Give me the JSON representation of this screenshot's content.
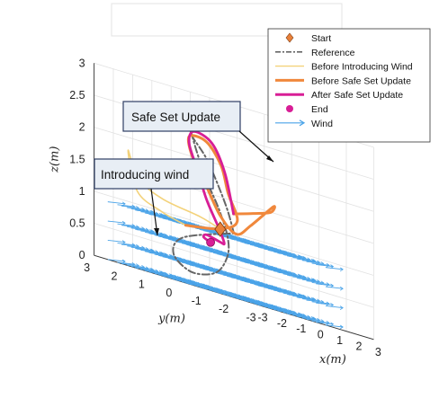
{
  "chart_data": {
    "type": "line",
    "projection": "3d",
    "xlabel": "x(m)",
    "ylabel": "y(m)",
    "zlabel": "z(m)",
    "xlim": [
      -3,
      3
    ],
    "ylim": [
      -3,
      3
    ],
    "zlim": [
      0,
      3
    ],
    "x_ticks": [
      "-3",
      "-2",
      "-1",
      "0",
      "1",
      "2",
      "3"
    ],
    "y_ticks": [
      "3",
      "2",
      "1",
      "0",
      "-1",
      "-2",
      "-3"
    ],
    "z_ticks": [
      "0",
      "0.5",
      "1",
      "1.5",
      "2",
      "2.5",
      "3"
    ],
    "grid": true,
    "legend_position": "top-right",
    "legend": [
      {
        "label": "Start",
        "color": "#e8803a",
        "marker": "diamond"
      },
      {
        "label": "Reference",
        "color": "#666666",
        "style": "dash-dot"
      },
      {
        "label": "Before Introducing Wind",
        "color": "#f3d27a",
        "style": "solid"
      },
      {
        "label": "Before Safe Set Update",
        "color": "#f0883c",
        "style": "solid"
      },
      {
        "label": "After Safe Set Update",
        "color": "#d81e96",
        "style": "solid"
      },
      {
        "label": "End",
        "color": "#d81e96",
        "marker": "circle"
      },
      {
        "label": "Wind",
        "color": "#4aa3e8",
        "marker": "arrow"
      }
    ],
    "annotations": [
      {
        "text": "Safe Set Update"
      },
      {
        "text": "Introducing wind"
      }
    ],
    "start_point": {
      "x": 0.0,
      "y": 0.5,
      "z": 1.0
    },
    "end_point": {
      "x": -0.5,
      "y": 0.5,
      "z": 0.75
    },
    "series": [
      {
        "name": "Reference",
        "points": [
          [
            0.0,
            0.0,
            1.0
          ],
          [
            1.0,
            1.0,
            1.4
          ],
          [
            1.2,
            1.8,
            2.0
          ],
          [
            1.0,
            2.2,
            2.3
          ],
          [
            0.6,
            2.0,
            2.4
          ],
          [
            0.2,
            1.5,
            2.1
          ],
          [
            0.0,
            1.0,
            1.7
          ],
          [
            -0.2,
            0.4,
            1.3
          ],
          [
            -0.6,
            -0.2,
            0.9
          ],
          [
            -1.2,
            -0.6,
            0.6
          ],
          [
            -1.8,
            -0.6,
            0.3
          ],
          [
            -2.2,
            0.0,
            0.2
          ],
          [
            -2.0,
            0.8,
            0.4
          ],
          [
            -1.2,
            1.0,
            0.7
          ],
          [
            0.0,
            0.0,
            1.0
          ]
        ]
      },
      {
        "name": "Before Introducing Wind",
        "points": [
          [
            0.0,
            0.5,
            1.0
          ],
          [
            -0.6,
            0.8,
            1.1
          ],
          [
            -1.4,
            1.6,
            1.2
          ],
          [
            -1.8,
            2.2,
            1.4
          ],
          [
            -1.8,
            2.6,
            1.8
          ],
          [
            -1.6,
            2.4,
            1.2
          ],
          [
            -1.2,
            1.8,
            1.0
          ],
          [
            -0.8,
            1.2,
            0.9
          ]
        ]
      },
      {
        "name": "Before Safe Set Update",
        "points": [
          [
            -0.8,
            1.2,
            0.9
          ],
          [
            -0.2,
            0.4,
            1.0
          ],
          [
            0.6,
            0.3,
            1.2
          ],
          [
            1.4,
            1.2,
            1.6
          ],
          [
            1.6,
            1.6,
            2.0
          ],
          [
            1.4,
            2.0,
            2.3
          ],
          [
            0.8,
            2.2,
            2.3
          ],
          [
            0.4,
            1.8,
            2.0
          ],
          [
            0.0,
            1.0,
            1.6
          ],
          [
            -0.4,
            0.2,
            1.2
          ],
          [
            -1.0,
            -0.8,
            1.0
          ],
          [
            -1.4,
            -1.6,
            1.2
          ],
          [
            -0.8,
            -2.0,
            1.6
          ],
          [
            0.2,
            -1.2,
            1.5
          ],
          [
            1.0,
            0.0,
            1.4
          ],
          [
            1.4,
            1.0,
            1.3
          ]
        ]
      },
      {
        "name": "After Safe Set Update",
        "points": [
          [
            1.4,
            1.0,
            1.3
          ],
          [
            1.8,
            1.6,
            1.9
          ],
          [
            1.7,
            2.0,
            2.3
          ],
          [
            1.2,
            2.3,
            2.4
          ],
          [
            0.8,
            2.2,
            2.2
          ],
          [
            0.4,
            1.6,
            1.8
          ],
          [
            0.0,
            1.0,
            1.4
          ],
          [
            -0.2,
            0.4,
            1.0
          ],
          [
            -0.5,
            0.0,
            0.8
          ],
          [
            -1.0,
            -0.2,
            0.8
          ],
          [
            -1.4,
            0.0,
            0.85
          ],
          [
            -1.0,
            0.4,
            0.8
          ],
          [
            -0.5,
            0.5,
            0.75
          ]
        ]
      }
    ],
    "wind": {
      "direction": "+x",
      "x_range": [
        -3,
        0.5
      ],
      "y_range": [
        -3,
        2.5
      ],
      "z_range": [
        0,
        0.9
      ]
    }
  }
}
